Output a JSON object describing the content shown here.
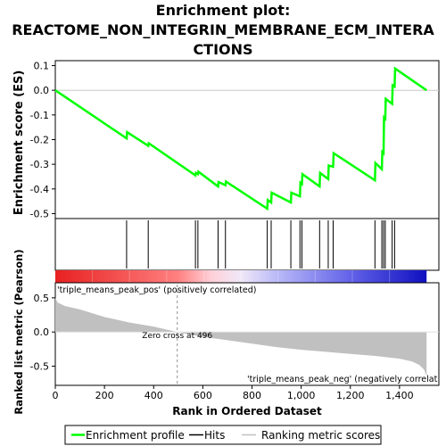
{
  "title_lines": [
    "Enrichment plot:",
    "REACTOME_NON_INTEGRIN_MEMBRANE_ECM_INTERA",
    "CTIONS"
  ],
  "colors": {
    "profile": "#00ff00",
    "hits": "#000000",
    "metric_fill": "#c0c0c0",
    "pos_label": "#ff0000",
    "neg_label": "#0000ff"
  },
  "chart_data": [
    {
      "type": "line",
      "name": "enrichment-plot",
      "ylabel": "Enrichment score (ES)",
      "xlim": [
        0,
        1560
      ],
      "ylim": [
        -0.52,
        0.12
      ],
      "yticks": [
        0.1,
        0.0,
        -0.1,
        -0.2,
        -0.3,
        -0.4,
        -0.5
      ],
      "ytick_labels": [
        "0.1",
        "0.0",
        "-0.1",
        "-0.2",
        "-0.3",
        "-0.4",
        "-0.5"
      ],
      "series": [
        {
          "x": [
            0,
            290,
            292,
            378,
            380,
            570,
            572,
            580,
            582,
            662,
            664,
            692,
            694,
            862,
            864,
            878,
            880,
            958,
            960,
            995,
            997,
            1003,
            1005,
            1075,
            1077,
            1110,
            1112,
            1130,
            1132,
            1300,
            1302,
            1328,
            1330,
            1335,
            1337,
            1342,
            1344,
            1370,
            1372,
            1380,
            1382,
            1510
          ],
          "y": [
            0.0,
            -0.195,
            -0.17,
            -0.225,
            -0.215,
            -0.345,
            -0.335,
            -0.34,
            -0.33,
            -0.39,
            -0.372,
            -0.385,
            -0.37,
            -0.48,
            -0.445,
            -0.455,
            -0.415,
            -0.455,
            -0.415,
            -0.43,
            -0.375,
            -0.38,
            -0.34,
            -0.39,
            -0.335,
            -0.36,
            -0.305,
            -0.31,
            -0.255,
            -0.365,
            -0.295,
            -0.32,
            -0.25,
            -0.255,
            -0.11,
            -0.115,
            -0.035,
            -0.055,
            0.02,
            0.015,
            0.088,
            0.0
          ]
        }
      ]
    },
    {
      "type": "scatter",
      "name": "hits",
      "hit_positions": [
        290,
        378,
        570,
        580,
        662,
        692,
        862,
        878,
        958,
        995,
        1003,
        1075,
        1110,
        1130,
        1300,
        1328,
        1335,
        1342,
        1370,
        1380
      ]
    },
    {
      "type": "area",
      "name": "ranked-list-metric",
      "xlabel": "Rank in Ordered Dataset",
      "ylabel": "Ranked list metric (Pearson)",
      "xlim": [
        0,
        1560
      ],
      "ylim": [
        -0.78,
        0.72
      ],
      "xticks": [
        0,
        200,
        400,
        600,
        800,
        1000,
        1200,
        1400
      ],
      "xtick_labels": [
        "0",
        "200",
        "400",
        "600",
        "800",
        "1,000",
        "1,200",
        "1,400"
      ],
      "yticks": [
        0.5,
        0.0,
        -0.5
      ],
      "ytick_labels": [
        "0.5",
        "0.0",
        "-0.5"
      ],
      "x": [
        0,
        10,
        40,
        100,
        200,
        300,
        400,
        496,
        600,
        700,
        800,
        900,
        1000,
        1100,
        1200,
        1300,
        1400,
        1450,
        1480,
        1500,
        1510
      ],
      "y": [
        0.5,
        0.43,
        0.38,
        0.33,
        0.22,
        0.14,
        0.08,
        0.0,
        -0.07,
        -0.12,
        -0.17,
        -0.22,
        -0.26,
        -0.29,
        -0.32,
        -0.35,
        -0.39,
        -0.43,
        -0.48,
        -0.55,
        -0.65
      ],
      "zero_cross": 496,
      "zero_cross_label": "Zero cross at 496",
      "pos_label": "'triple_means_peak_pos' (positively correlated)",
      "neg_label": "'triple_means_peak_neg' (negatively correlat"
    }
  ],
  "legend": [
    {
      "label": "Enrichment profile",
      "kind": "profile"
    },
    {
      "label": "Hits",
      "kind": "hits"
    },
    {
      "label": "Ranking metric scores",
      "kind": "metric"
    }
  ]
}
